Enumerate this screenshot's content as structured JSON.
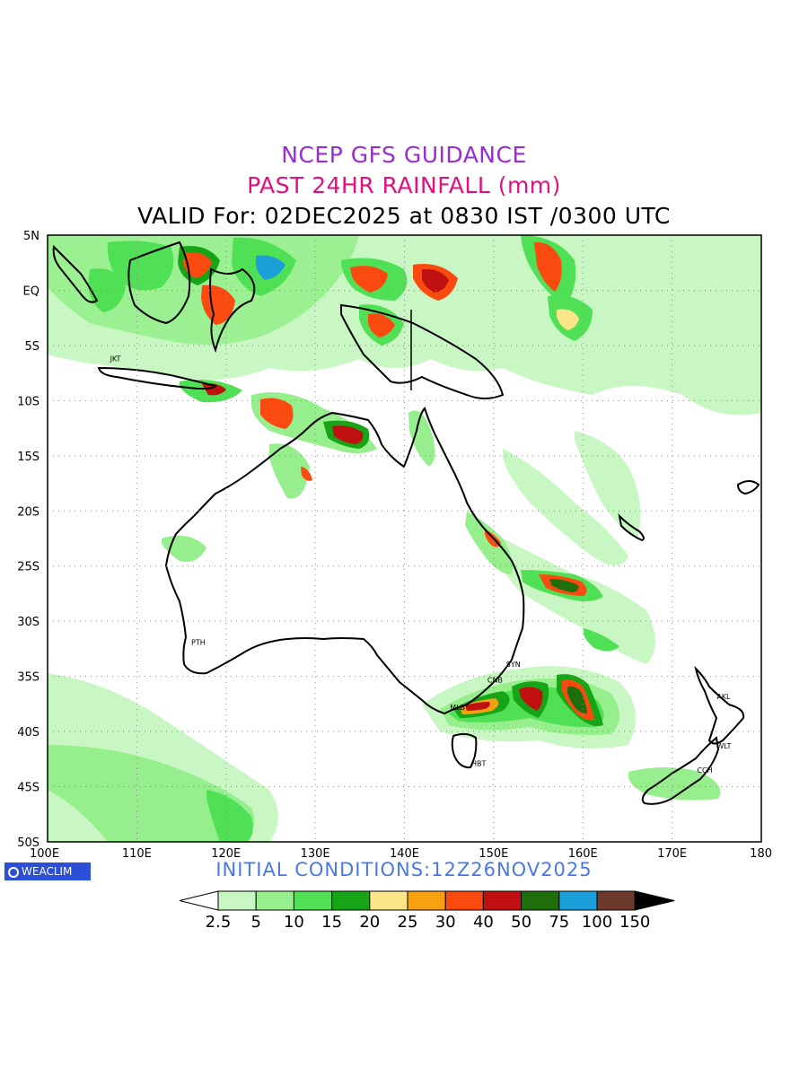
{
  "header": {
    "title_line1": "NCEP GFS GUIDANCE",
    "title_line2": "PAST 24HR RAINFALL (mm)",
    "valid_line": "VALID For: 02DEC2025 at 0830 IST /0300 UTC"
  },
  "map": {
    "lon_range": [
      100,
      180
    ],
    "lat_range": [
      -50,
      5
    ],
    "lon_ticks": [
      "100E",
      "110E",
      "120E",
      "130E",
      "140E",
      "150E",
      "160E",
      "170E",
      "180"
    ],
    "lat_ticks": [
      "5N",
      "EQ",
      "5S",
      "10S",
      "15S",
      "20S",
      "25S",
      "30S",
      "35S",
      "40S",
      "45S",
      "50S"
    ],
    "cities": [
      {
        "name": "JKT",
        "lon": 106.8,
        "lat": -6.2
      },
      {
        "name": "PTH",
        "lon": 115.9,
        "lat": -31.9
      },
      {
        "name": "SYN",
        "lon": 151.2,
        "lat": -33.9
      },
      {
        "name": "CNB",
        "lon": 149.1,
        "lat": -35.3
      },
      {
        "name": "MLB",
        "lon": 144.9,
        "lat": -37.8
      },
      {
        "name": "HBT",
        "lon": 147.3,
        "lat": -42.9
      },
      {
        "name": "AKL",
        "lon": 174.8,
        "lat": -36.8
      },
      {
        "name": "WLT",
        "lon": 174.8,
        "lat": -41.3
      },
      {
        "name": "CCH",
        "lon": 172.6,
        "lat": -43.5
      }
    ]
  },
  "initial_conditions": "INITIAL CONDITIONS:12Z26NOV2025",
  "logo": "WEACLIM",
  "colorbar": {
    "labels": [
      "2.5",
      "5",
      "10",
      "15",
      "20",
      "25",
      "30",
      "40",
      "50",
      "75",
      "100",
      "150"
    ],
    "colors": [
      "#c9f7c3",
      "#96ef8c",
      "#4fe055",
      "#17a517",
      "#fde58a",
      "#f9a010",
      "#fb4a10",
      "#c01010",
      "#1f6e0c",
      "#1a9fd8",
      "#6e3a2e"
    ]
  }
}
